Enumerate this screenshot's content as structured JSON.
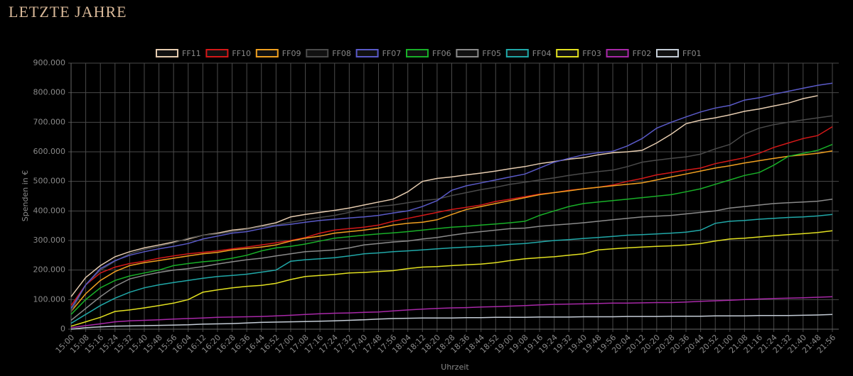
{
  "page_title": "LETZTE JAHRE",
  "chart_data": {
    "type": "line",
    "y_label": "Spenden in €",
    "x_label": "Uhrzeit",
    "categories": [
      "15:00",
      "15:08",
      "15:16",
      "15:24",
      "15:32",
      "15:40",
      "15:48",
      "15:56",
      "16:04",
      "16:12",
      "16:20",
      "16:28",
      "16:36",
      "16:44",
      "16:52",
      "17:00",
      "17:08",
      "17:16",
      "17:24",
      "17:32",
      "17:40",
      "17:48",
      "17:56",
      "18:04",
      "18:12",
      "18:20",
      "18:28",
      "18:36",
      "18:44",
      "18:52",
      "19:00",
      "19:08",
      "19:16",
      "19:24",
      "19:32",
      "19:40",
      "19:48",
      "19:56",
      "20:04",
      "20:12",
      "20:20",
      "20:28",
      "20:36",
      "20:44",
      "20:52",
      "21:00",
      "21:08",
      "21:16",
      "21:24",
      "21:32",
      "21:40",
      "21:48",
      "21:56"
    ],
    "ylim": [
      0,
      900000
    ],
    "yticks": [
      {
        "value": 0,
        "label": "0"
      },
      {
        "value": 100000,
        "label": "100.000"
      },
      {
        "value": 200000,
        "label": "200.000"
      },
      {
        "value": 300000,
        "label": "300.000"
      },
      {
        "value": 400000,
        "label": "400.000"
      },
      {
        "value": 500000,
        "label": "500.000"
      },
      {
        "value": 600000,
        "label": "600.000"
      },
      {
        "value": 700000,
        "label": "700.000"
      },
      {
        "value": 800000,
        "label": "800.000"
      },
      {
        "value": 900000,
        "label": "900.000"
      }
    ],
    "grid": true,
    "legend": "top",
    "series": [
      {
        "name": "FF11",
        "color": "#e6ccb0",
        "values": [
          110000,
          175000,
          215000,
          245000,
          262000,
          275000,
          285000,
          295000,
          305000,
          318000,
          325000,
          335000,
          340000,
          350000,
          360000,
          380000,
          388000,
          395000,
          402000,
          410000,
          420000,
          430000,
          440000,
          465000,
          500000,
          510000,
          515000,
          522000,
          528000,
          535000,
          543000,
          550000,
          560000,
          567000,
          575000,
          580000,
          590000,
          597000,
          600000,
          605000,
          630000,
          660000,
          695000,
          707000,
          715000,
          725000,
          737000,
          745000,
          755000,
          765000,
          780000,
          790000,
          null
        ]
      },
      {
        "name": "FF10",
        "color": "#d41818",
        "values": [
          80000,
          150000,
          190000,
          210000,
          222000,
          230000,
          240000,
          248000,
          255000,
          260000,
          265000,
          272000,
          278000,
          285000,
          292000,
          300000,
          310000,
          325000,
          335000,
          340000,
          345000,
          352000,
          365000,
          375000,
          385000,
          395000,
          405000,
          412000,
          420000,
          432000,
          440000,
          448000,
          457000,
          462000,
          470000,
          475000,
          480000,
          488000,
          500000,
          510000,
          522000,
          530000,
          538000,
          545000,
          560000,
          570000,
          580000,
          595000,
          615000,
          630000,
          645000,
          655000,
          685000
        ]
      },
      {
        "name": "FF09",
        "color": "#f0a020",
        "values": [
          60000,
          120000,
          165000,
          195000,
          215000,
          225000,
          232000,
          240000,
          248000,
          255000,
          260000,
          268000,
          273000,
          278000,
          285000,
          298000,
          308000,
          315000,
          325000,
          330000,
          335000,
          342000,
          352000,
          358000,
          362000,
          370000,
          388000,
          405000,
          415000,
          425000,
          435000,
          445000,
          455000,
          462000,
          468000,
          475000,
          480000,
          485000,
          490000,
          495000,
          505000,
          515000,
          525000,
          535000,
          545000,
          553000,
          562000,
          570000,
          578000,
          585000,
          590000,
          595000,
          603000
        ]
      },
      {
        "name": "FF08",
        "color": "#4a4a4a",
        "values": [
          60000,
          150000,
          200000,
          230000,
          255000,
          270000,
          280000,
          292000,
          308000,
          318000,
          322000,
          330000,
          338000,
          347000,
          352000,
          362000,
          370000,
          378000,
          385000,
          395000,
          408000,
          415000,
          420000,
          428000,
          435000,
          440000,
          452000,
          462000,
          472000,
          480000,
          490000,
          497000,
          505000,
          512000,
          520000,
          527000,
          533000,
          538000,
          550000,
          565000,
          572000,
          578000,
          583000,
          592000,
          610000,
          625000,
          660000,
          680000,
          692000,
          700000,
          708000,
          715000,
          722000
        ]
      },
      {
        "name": "FF07",
        "color": "#5a5ac8",
        "values": [
          70000,
          150000,
          205000,
          232000,
          250000,
          262000,
          272000,
          280000,
          290000,
          305000,
          315000,
          325000,
          330000,
          340000,
          350000,
          355000,
          362000,
          368000,
          372000,
          376000,
          380000,
          385000,
          393000,
          400000,
          415000,
          435000,
          470000,
          485000,
          495000,
          505000,
          515000,
          525000,
          545000,
          565000,
          578000,
          590000,
          597000,
          602000,
          620000,
          645000,
          680000,
          700000,
          718000,
          735000,
          748000,
          757000,
          775000,
          783000,
          795000,
          805000,
          815000,
          825000,
          832000
        ]
      },
      {
        "name": "FF06",
        "color": "#18b028",
        "values": [
          50000,
          100000,
          140000,
          165000,
          180000,
          190000,
          200000,
          215000,
          222000,
          228000,
          232000,
          240000,
          250000,
          265000,
          275000,
          280000,
          288000,
          298000,
          308000,
          313000,
          318000,
          322000,
          326000,
          330000,
          335000,
          340000,
          345000,
          348000,
          352000,
          356000,
          360000,
          365000,
          385000,
          400000,
          415000,
          425000,
          430000,
          435000,
          440000,
          445000,
          450000,
          455000,
          465000,
          475000,
          490000,
          505000,
          520000,
          530000,
          555000,
          585000,
          595000,
          605000,
          625000
        ]
      },
      {
        "name": "FF05",
        "color": "#8a8a8a",
        "values": [
          30000,
          70000,
          110000,
          145000,
          170000,
          182000,
          192000,
          200000,
          205000,
          212000,
          220000,
          228000,
          235000,
          240000,
          248000,
          255000,
          262000,
          265000,
          268000,
          275000,
          285000,
          290000,
          295000,
          298000,
          305000,
          310000,
          318000,
          325000,
          330000,
          335000,
          340000,
          342000,
          348000,
          352000,
          356000,
          360000,
          365000,
          370000,
          375000,
          380000,
          382000,
          385000,
          390000,
          395000,
          400000,
          410000,
          415000,
          420000,
          425000,
          428000,
          430000,
          433000,
          440000
        ]
      },
      {
        "name": "FF04",
        "color": "#20a8a8",
        "values": [
          20000,
          50000,
          80000,
          105000,
          125000,
          140000,
          150000,
          158000,
          165000,
          172000,
          178000,
          182000,
          186000,
          193000,
          200000,
          230000,
          235000,
          238000,
          242000,
          248000,
          255000,
          258000,
          262000,
          265000,
          268000,
          272000,
          275000,
          278000,
          280000,
          283000,
          287000,
          290000,
          295000,
          300000,
          303000,
          307000,
          310000,
          314000,
          318000,
          320000,
          322000,
          325000,
          328000,
          335000,
          358000,
          365000,
          368000,
          372000,
          375000,
          378000,
          380000,
          383000,
          388000
        ]
      },
      {
        "name": "FF03",
        "color": "#e2e020",
        "values": [
          10000,
          25000,
          40000,
          60000,
          65000,
          72000,
          80000,
          88000,
          100000,
          125000,
          133000,
          140000,
          145000,
          148000,
          155000,
          168000,
          178000,
          182000,
          185000,
          190000,
          192000,
          195000,
          198000,
          205000,
          210000,
          212000,
          215000,
          218000,
          220000,
          225000,
          232000,
          238000,
          242000,
          245000,
          250000,
          255000,
          268000,
          272000,
          275000,
          278000,
          280000,
          282000,
          285000,
          290000,
          298000,
          305000,
          308000,
          312000,
          316000,
          320000,
          323000,
          327000,
          333000
        ]
      },
      {
        "name": "FF02",
        "color": "#a828a8",
        "values": [
          5000,
          12000,
          18000,
          25000,
          28000,
          30000,
          32000,
          34000,
          36000,
          38000,
          40000,
          41000,
          42000,
          43000,
          45000,
          47000,
          50000,
          52000,
          54000,
          55000,
          57000,
          58000,
          62000,
          65000,
          68000,
          70000,
          72000,
          73000,
          75000,
          76000,
          78000,
          80000,
          82000,
          84000,
          85000,
          86000,
          87000,
          88000,
          88000,
          89000,
          90000,
          90000,
          92000,
          94000,
          96000,
          98000,
          100000,
          102000,
          104000,
          105000,
          106000,
          108000,
          110000
        ]
      },
      {
        "name": "FF01",
        "color": "#c4ccd6",
        "values": [
          0,
          5000,
          8000,
          10000,
          11000,
          12000,
          13000,
          14000,
          15000,
          17000,
          18000,
          19000,
          21000,
          23000,
          24000,
          25000,
          26000,
          27000,
          28000,
          30000,
          32000,
          34000,
          36000,
          37000,
          38000,
          38000,
          38000,
          39000,
          39000,
          40000,
          40000,
          40000,
          41000,
          41000,
          41000,
          42000,
          42000,
          42000,
          43000,
          43000,
          43000,
          44000,
          44000,
          44000,
          45000,
          45000,
          45000,
          46000,
          46000,
          46000,
          47000,
          48000,
          50000
        ]
      }
    ]
  }
}
